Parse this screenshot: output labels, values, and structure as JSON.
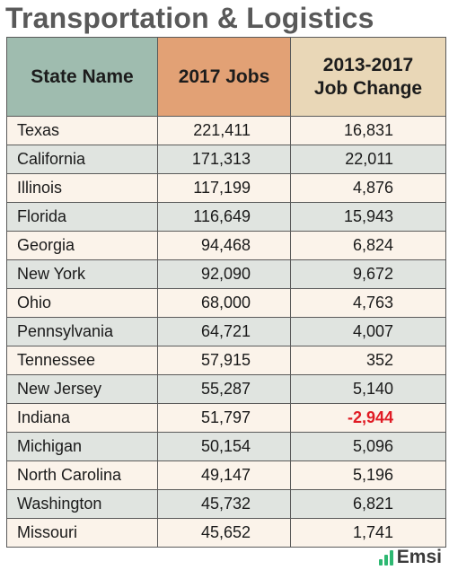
{
  "title": "Transportation & Logistics",
  "brand": {
    "name": "Emsi",
    "accent": "#2eb872"
  },
  "colors": {
    "header_state": "#9fbcaf",
    "header_jobs": "#e2a175",
    "header_change": "#e9d7b7",
    "negative": "#e01b24"
  },
  "chart_data": {
    "type": "table",
    "title": "Transportation & Logistics",
    "columns": [
      "State Name",
      "2017 Jobs",
      "2013-2017 Job Change"
    ],
    "header_lines": {
      "col3_line1": "2013-2017",
      "col3_line2": "Job Change"
    },
    "rows": [
      {
        "state": "Texas",
        "jobs_label": "221,411",
        "change_label": "16,831",
        "jobs": 221411,
        "change": 16831
      },
      {
        "state": "California",
        "jobs_label": "171,313",
        "change_label": "22,011",
        "jobs": 171313,
        "change": 22011
      },
      {
        "state": "Illinois",
        "jobs_label": "117,199",
        "change_label": "4,876",
        "jobs": 117199,
        "change": 4876
      },
      {
        "state": "Florida",
        "jobs_label": "116,649",
        "change_label": "15,943",
        "jobs": 116649,
        "change": 15943
      },
      {
        "state": "Georgia",
        "jobs_label": "94,468",
        "change_label": "6,824",
        "jobs": 94468,
        "change": 6824
      },
      {
        "state": "New York",
        "jobs_label": "92,090",
        "change_label": "9,672",
        "jobs": 92090,
        "change": 9672
      },
      {
        "state": "Ohio",
        "jobs_label": "68,000",
        "change_label": "4,763",
        "jobs": 68000,
        "change": 4763
      },
      {
        "state": "Pennsylvania",
        "jobs_label": "64,721",
        "change_label": "4,007",
        "jobs": 64721,
        "change": 4007
      },
      {
        "state": "Tennessee",
        "jobs_label": "57,915",
        "change_label": "352",
        "jobs": 57915,
        "change": 352
      },
      {
        "state": "New Jersey",
        "jobs_label": "55,287",
        "change_label": "5,140",
        "jobs": 55287,
        "change": 5140
      },
      {
        "state": "Indiana",
        "jobs_label": "51,797",
        "change_label": "-2,944",
        "jobs": 51797,
        "change": -2944
      },
      {
        "state": "Michigan",
        "jobs_label": "50,154",
        "change_label": "5,096",
        "jobs": 50154,
        "change": 5096
      },
      {
        "state": "North Carolina",
        "jobs_label": "49,147",
        "change_label": "5,196",
        "jobs": 49147,
        "change": 5196
      },
      {
        "state": "Washington",
        "jobs_label": "45,732",
        "change_label": "6,821",
        "jobs": 45732,
        "change": 6821
      },
      {
        "state": "Missouri",
        "jobs_label": "45,652",
        "change_label": "1,741",
        "jobs": 45652,
        "change": 1741
      }
    ]
  }
}
